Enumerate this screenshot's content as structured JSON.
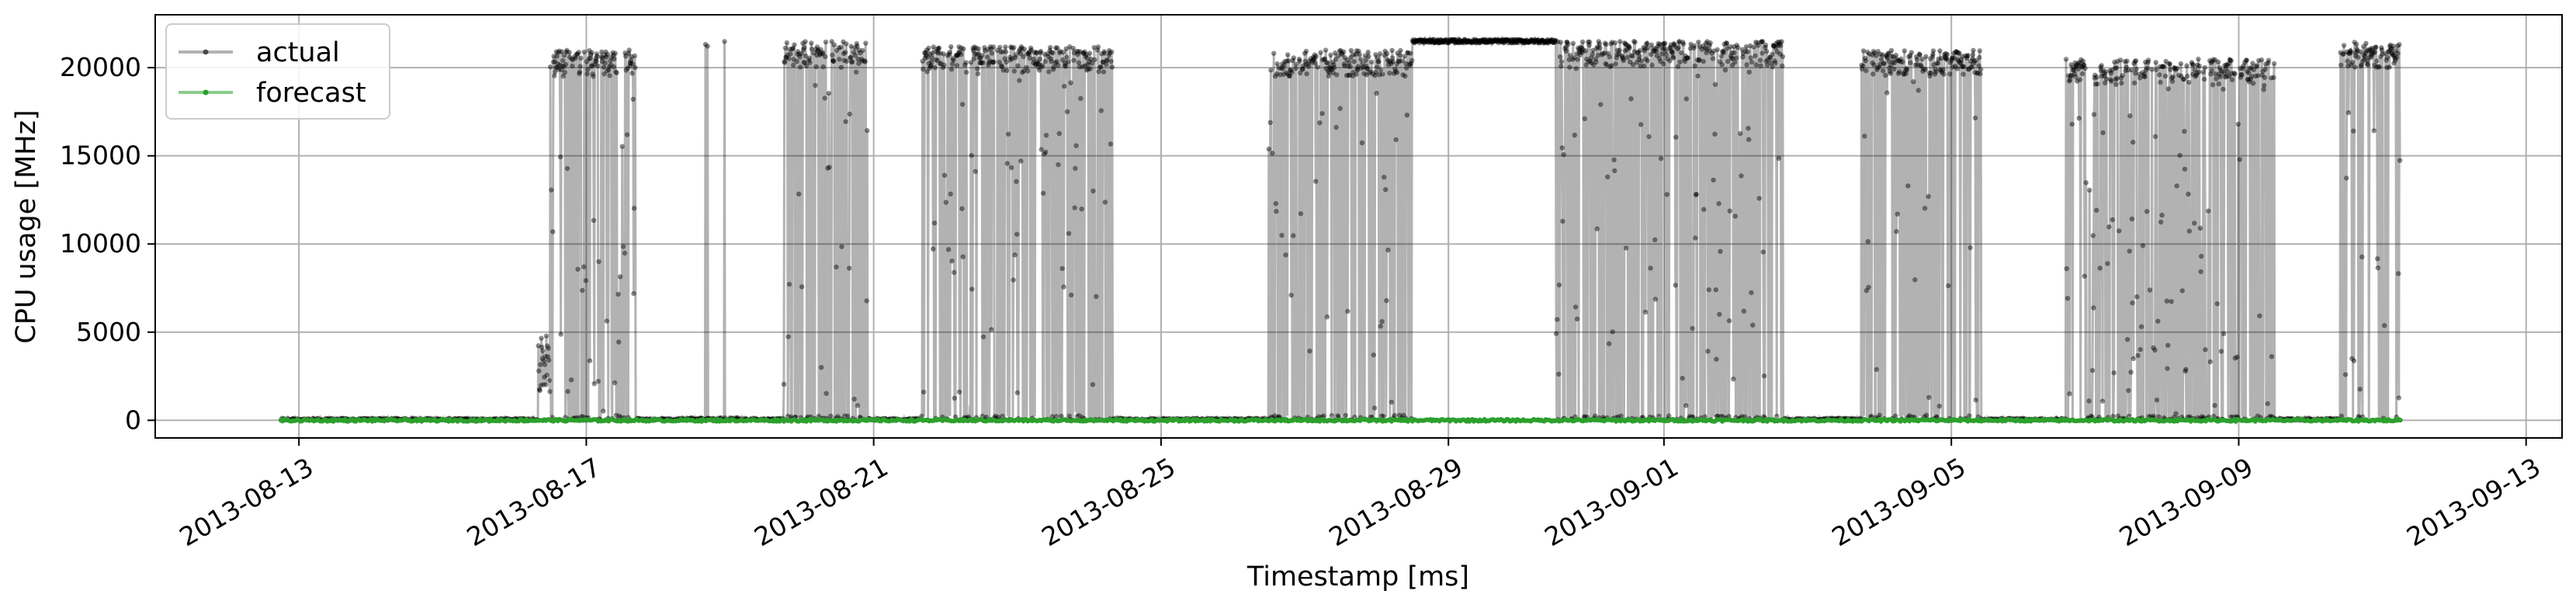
{
  "chart_data": {
    "type": "line",
    "xlabel": "Timestamp [ms]",
    "ylabel": "CPU usage [MHz]",
    "x_start": "2013-08-12T18:00",
    "x_end": "2013-09-11T06:00",
    "xlim": [
      "2013-08-11T00:00",
      "2013-09-13T12:00"
    ],
    "ylim": [
      -1000,
      23000
    ],
    "yticks": [
      0,
      5000,
      10000,
      15000,
      20000
    ],
    "ytick_labels": [
      "0",
      "5000",
      "10000",
      "15000",
      "20000"
    ],
    "xticks": [
      "2013-08-13",
      "2013-08-17",
      "2013-08-21",
      "2013-08-25",
      "2013-08-29",
      "2013-09-01",
      "2013-09-05",
      "2013-09-09",
      "2013-09-13"
    ],
    "xtick_labels": [
      "2013-08-13",
      "2013-08-17",
      "2013-08-21",
      "2013-08-25",
      "2013-08-29",
      "2013-09-01",
      "2013-09-05",
      "2013-09-09",
      "2013-09-13"
    ],
    "grid": true,
    "legend_position": "top-left",
    "series": [
      {
        "name": "actual",
        "color": "#000000",
        "style": "line with small dot markers",
        "segments": [
          {
            "start": "2013-08-12T18:00",
            "end": "2013-08-16T08:00",
            "level": 0,
            "behavior": "idle"
          },
          {
            "start": "2013-08-16T08:00",
            "end": "2013-08-16T12:00",
            "level": 4000,
            "behavior": "ramp"
          },
          {
            "start": "2013-08-16T12:00",
            "end": "2013-08-17T17:00",
            "high": 21000,
            "low": 0,
            "behavior": "oscillating"
          },
          {
            "start": "2013-08-17T17:00",
            "end": "2013-08-18T06:00",
            "level": 0,
            "behavior": "idle"
          },
          {
            "start": "2013-08-18T06:00",
            "end": "2013-08-19T06:00",
            "high": 21500,
            "low": 0,
            "behavior": "sparse spikes"
          },
          {
            "start": "2013-08-19T06:00",
            "end": "2013-08-19T18:00",
            "level": 0,
            "behavior": "idle"
          },
          {
            "start": "2013-08-19T18:00",
            "end": "2013-08-20T22:00",
            "high": 21500,
            "low": 0,
            "behavior": "oscillating"
          },
          {
            "start": "2013-08-20T22:00",
            "end": "2013-08-21T16:00",
            "level": 0,
            "behavior": "idle"
          },
          {
            "start": "2013-08-21T16:00",
            "end": "2013-08-24T08:00",
            "high": 21200,
            "low": 0,
            "behavior": "oscillating"
          },
          {
            "start": "2013-08-24T08:00",
            "end": "2013-08-26T12:00",
            "level": 0,
            "behavior": "idle"
          },
          {
            "start": "2013-08-26T12:00",
            "end": "2013-08-28T12:00",
            "high": 21000,
            "low": 0,
            "behavior": "mostly high"
          },
          {
            "start": "2013-08-28T12:00",
            "end": "2013-08-30T12:00",
            "level": 21500,
            "behavior": "steady high"
          },
          {
            "start": "2013-08-30T12:00",
            "end": "2013-09-02T16:00",
            "high": 21500,
            "low": 0,
            "behavior": "oscillating"
          },
          {
            "start": "2013-09-02T16:00",
            "end": "2013-09-03T18:00",
            "level": 0,
            "behavior": "idle"
          },
          {
            "start": "2013-09-03T18:00",
            "end": "2013-09-05T10:00",
            "high": 21000,
            "low": 0,
            "behavior": "mostly high"
          },
          {
            "start": "2013-09-05T10:00",
            "end": "2013-09-06T14:00",
            "level": 0,
            "behavior": "idle"
          },
          {
            "start": "2013-09-06T14:00",
            "end": "2013-09-09T12:00",
            "high": 20500,
            "low": 0,
            "behavior": "oscillating"
          },
          {
            "start": "2013-09-09T12:00",
            "end": "2013-09-10T10:00",
            "level": 0,
            "behavior": "idle"
          },
          {
            "start": "2013-09-10T10:00",
            "end": "2013-09-11T06:00",
            "high": 21500,
            "low": 0,
            "behavior": "oscillating"
          }
        ]
      },
      {
        "name": "forecast",
        "color": "#2ca02c",
        "style": "line with small dot markers",
        "level": 0
      }
    ]
  }
}
